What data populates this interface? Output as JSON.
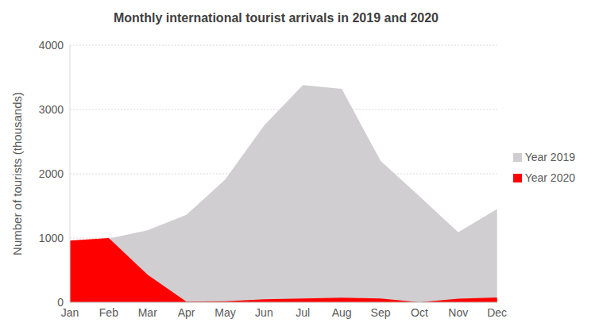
{
  "chart_data": {
    "type": "area",
    "title": "Monthly international tourist arrivals in 2019 and 2020",
    "y_label": "Number of tourists (thousands)",
    "categories": [
      "Jan",
      "Feb",
      "Mar",
      "Apr",
      "May",
      "Jun",
      "Jul",
      "Aug",
      "Sep",
      "Oct",
      "Nov",
      "Dec"
    ],
    "series": [
      {
        "name": "Year 2019",
        "color": "#d0ced0",
        "values": [
          940,
          990,
          1120,
          1360,
          1910,
          2750,
          3380,
          3320,
          2200,
          1650,
          1090,
          1450
        ]
      },
      {
        "name": "Year 2020",
        "color": "#ff0000",
        "values": [
          960,
          1000,
          430,
          10,
          15,
          45,
          60,
          70,
          60,
          0,
          55,
          75
        ]
      }
    ],
    "ylim": [
      0,
      4000
    ],
    "yticks": [
      0,
      1000,
      2000,
      3000,
      4000
    ],
    "grid": true,
    "legend": "right"
  }
}
